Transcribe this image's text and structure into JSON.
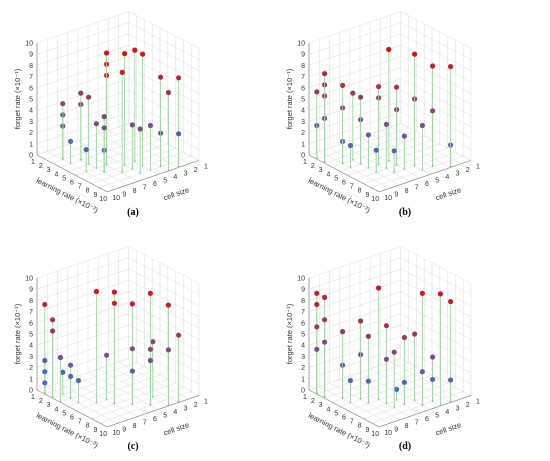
{
  "figure": {
    "panels": [
      {
        "caption": "(a)"
      },
      {
        "caption": "(b)"
      },
      {
        "caption": "(c)"
      },
      {
        "caption": "(d)"
      }
    ]
  },
  "colors": {
    "low": "#2f7ed8",
    "high": "#e01010",
    "stem": "#8fe08f",
    "grid": "#dddddd",
    "axis": "#888888"
  },
  "chart_data": [
    {
      "type": "scatter3d",
      "panel": "(a)",
      "xlabel": "learning rate (×10⁻³)",
      "ylabel": "cell size",
      "zlabel": "forget rate (×10⁻¹)",
      "xlim": [
        1,
        10
      ],
      "ylim": [
        1,
        10
      ],
      "zlim": [
        0,
        10
      ],
      "xticks": [
        "1",
        "2",
        "3",
        "4",
        "5",
        "6",
        "7",
        "8",
        "9",
        "10"
      ],
      "yticks": [
        "10",
        "9",
        "8",
        "7",
        "6",
        "5",
        "4",
        "3",
        "2",
        "1"
      ],
      "zticks": [
        "0",
        "1",
        "2",
        "3",
        "4",
        "5",
        "6",
        "7",
        "8",
        "9",
        "10"
      ],
      "points": [
        {
          "x": 3,
          "y": 9,
          "z": 3
        },
        {
          "x": 3,
          "y": 9,
          "z": 4
        },
        {
          "x": 3,
          "y": 9,
          "z": 5
        },
        {
          "x": 4,
          "y": 9,
          "z": 2
        },
        {
          "x": 4,
          "y": 8,
          "z": 5
        },
        {
          "x": 4,
          "y": 8,
          "z": 6
        },
        {
          "x": 5,
          "y": 8,
          "z": 6
        },
        {
          "x": 6,
          "y": 9,
          "z": 2
        },
        {
          "x": 6,
          "y": 8,
          "z": 4
        },
        {
          "x": 6,
          "y": 7,
          "z": 8
        },
        {
          "x": 6,
          "y": 7,
          "z": 9
        },
        {
          "x": 6,
          "y": 7,
          "z": 10
        },
        {
          "x": 7,
          "y": 8,
          "z": 2
        },
        {
          "x": 7,
          "y": 8,
          "z": 5
        },
        {
          "x": 7,
          "y": 8,
          "z": 4
        },
        {
          "x": 7,
          "y": 6,
          "z": 10
        },
        {
          "x": 7,
          "y": 5,
          "z": 10
        },
        {
          "x": 8,
          "y": 7,
          "z": 9
        },
        {
          "x": 8,
          "y": 6,
          "z": 4
        },
        {
          "x": 8,
          "y": 5,
          "z": 10
        },
        {
          "x": 9,
          "y": 6,
          "z": 4
        },
        {
          "x": 9,
          "y": 5,
          "z": 4
        },
        {
          "x": 9,
          "y": 4,
          "z": 3
        },
        {
          "x": 9,
          "y": 4,
          "z": 8
        },
        {
          "x": 10,
          "y": 4,
          "z": 7
        },
        {
          "x": 10,
          "y": 3,
          "z": 8
        },
        {
          "x": 10,
          "y": 3,
          "z": 3
        }
      ]
    },
    {
      "type": "scatter3d",
      "panel": "(b)",
      "xlabel": "learning rate (×10⁻³)",
      "ylabel": "cell size",
      "zlabel": "forget rate (×10⁻¹)",
      "xlim": [
        1,
        10
      ],
      "ylim": [
        1,
        10
      ],
      "zlim": [
        0,
        10
      ],
      "xticks": [
        "1",
        "2",
        "3",
        "4",
        "5",
        "6",
        "7",
        "8",
        "9",
        "10"
      ],
      "yticks": [
        "10",
        "9",
        "8",
        "7",
        "6",
        "5",
        "4",
        "3",
        "2",
        "1"
      ],
      "zticks": [
        "0",
        "1",
        "2",
        "3",
        "4",
        "5",
        "6",
        "7",
        "8",
        "9",
        "10"
      ],
      "points": [
        {
          "x": 2,
          "y": 10,
          "z": 3
        },
        {
          "x": 2,
          "y": 10,
          "z": 6
        },
        {
          "x": 3,
          "y": 10,
          "z": 4
        },
        {
          "x": 3,
          "y": 10,
          "z": 6
        },
        {
          "x": 3,
          "y": 10,
          "z": 7
        },
        {
          "x": 3,
          "y": 10,
          "z": 8
        },
        {
          "x": 4,
          "y": 9,
          "z": 2
        },
        {
          "x": 4,
          "y": 9,
          "z": 5
        },
        {
          "x": 4,
          "y": 8,
          "z": 6
        },
        {
          "x": 4,
          "y": 9,
          "z": 7
        },
        {
          "x": 5,
          "y": 9,
          "z": 2
        },
        {
          "x": 5,
          "y": 8,
          "z": 4
        },
        {
          "x": 5,
          "y": 8,
          "z": 6
        },
        {
          "x": 6,
          "y": 8,
          "z": 3
        },
        {
          "x": 6,
          "y": 7,
          "z": 6
        },
        {
          "x": 6,
          "y": 7,
          "z": 7
        },
        {
          "x": 6,
          "y": 6,
          "z": 10
        },
        {
          "x": 7,
          "y": 8,
          "z": 2
        },
        {
          "x": 7,
          "y": 7,
          "z": 4
        },
        {
          "x": 7,
          "y": 6,
          "z": 5
        },
        {
          "x": 7,
          "y": 6,
          "z": 7
        },
        {
          "x": 8,
          "y": 7,
          "z": 2
        },
        {
          "x": 8,
          "y": 6,
          "z": 3
        },
        {
          "x": 8,
          "y": 5,
          "z": 6
        },
        {
          "x": 8,
          "y": 5,
          "z": 10
        },
        {
          "x": 9,
          "y": 5,
          "z": 4
        },
        {
          "x": 9,
          "y": 4,
          "z": 9
        },
        {
          "x": 9,
          "y": 4,
          "z": 5
        },
        {
          "x": 10,
          "y": 3,
          "z": 2
        },
        {
          "x": 10,
          "y": 3,
          "z": 9
        }
      ]
    },
    {
      "type": "scatter3d",
      "panel": "(c)",
      "xlabel": "learning rate (×10⁻³)",
      "ylabel": "cell size",
      "zlabel": "forget rate (×10⁻¹)",
      "xlim": [
        1,
        10
      ],
      "ylim": [
        1,
        10
      ],
      "zlim": [
        0,
        10
      ],
      "xticks": [
        "1",
        "2",
        "3",
        "4",
        "5",
        "6",
        "7",
        "8",
        "9",
        "10"
      ],
      "yticks": [
        "10",
        "9",
        "8",
        "7",
        "6",
        "5",
        "4",
        "3",
        "2",
        "1"
      ],
      "zticks": [
        "0",
        "1",
        "2",
        "3",
        "4",
        "5",
        "6",
        "7",
        "8",
        "9",
        "10"
      ],
      "points": [
        {
          "x": 2,
          "y": 10,
          "z": 8
        },
        {
          "x": 2,
          "y": 10,
          "z": 3
        },
        {
          "x": 2,
          "y": 10,
          "z": 2
        },
        {
          "x": 2,
          "y": 10,
          "z": 1
        },
        {
          "x": 3,
          "y": 10,
          "z": 7
        },
        {
          "x": 3,
          "y": 10,
          "z": 6
        },
        {
          "x": 3,
          "y": 9,
          "z": 2
        },
        {
          "x": 4,
          "y": 10,
          "z": 4
        },
        {
          "x": 4,
          "y": 9,
          "z": 3
        },
        {
          "x": 4,
          "y": 9,
          "z": 2
        },
        {
          "x": 5,
          "y": 9,
          "z": 2
        },
        {
          "x": 6,
          "y": 7,
          "z": 4
        },
        {
          "x": 6,
          "y": 8,
          "z": 10
        },
        {
          "x": 7,
          "y": 7,
          "z": 10
        },
        {
          "x": 7,
          "y": 7,
          "z": 9
        },
        {
          "x": 8,
          "y": 6,
          "z": 9
        },
        {
          "x": 8,
          "y": 6,
          "z": 5
        },
        {
          "x": 8,
          "y": 6,
          "z": 3
        },
        {
          "x": 9,
          "y": 5,
          "z": 10
        },
        {
          "x": 9,
          "y": 5,
          "z": 5
        },
        {
          "x": 9,
          "y": 5,
          "z": 4
        },
        {
          "x": 10,
          "y": 4,
          "z": 9
        },
        {
          "x": 10,
          "y": 4,
          "z": 5
        },
        {
          "x": 10,
          "y": 3,
          "z": 6
        },
        {
          "x": 8,
          "y": 4,
          "z": 5
        }
      ]
    },
    {
      "type": "scatter3d",
      "panel": "(d)",
      "xlabel": "learning rate (×10⁻³)",
      "ylabel": "cell size",
      "zlabel": "forget rate (×10⁻¹)",
      "xlim": [
        1,
        10
      ],
      "ylim": [
        1,
        10
      ],
      "zlim": [
        0,
        10
      ],
      "xticks": [
        "1",
        "2",
        "3",
        "4",
        "5",
        "6",
        "7",
        "8",
        "9",
        "10"
      ],
      "yticks": [
        "10",
        "9",
        "8",
        "7",
        "6",
        "5",
        "4",
        "3",
        "2",
        "1"
      ],
      "zticks": [
        "0",
        "1",
        "2",
        "3",
        "4",
        "5",
        "6",
        "7",
        "8",
        "9",
        "10"
      ],
      "points": [
        {
          "x": 2,
          "y": 10,
          "z": 9
        },
        {
          "x": 2,
          "y": 10,
          "z": 8
        },
        {
          "x": 2,
          "y": 10,
          "z": 6
        },
        {
          "x": 2,
          "y": 10,
          "z": 4
        },
        {
          "x": 3,
          "y": 10,
          "z": 9
        },
        {
          "x": 3,
          "y": 10,
          "z": 7
        },
        {
          "x": 3,
          "y": 10,
          "z": 5
        },
        {
          "x": 4,
          "y": 9,
          "z": 3
        },
        {
          "x": 4,
          "y": 9,
          "z": 6
        },
        {
          "x": 5,
          "y": 9,
          "z": 2
        },
        {
          "x": 5,
          "y": 8,
          "z": 4
        },
        {
          "x": 5,
          "y": 8,
          "z": 7
        },
        {
          "x": 6,
          "y": 8,
          "z": 6
        },
        {
          "x": 6,
          "y": 8,
          "z": 2
        },
        {
          "x": 6,
          "y": 7,
          "z": 10
        },
        {
          "x": 7,
          "y": 7,
          "z": 7
        },
        {
          "x": 7,
          "y": 7,
          "z": 4
        },
        {
          "x": 7,
          "y": 6,
          "z": 1
        },
        {
          "x": 8,
          "y": 7,
          "z": 5
        },
        {
          "x": 8,
          "y": 6,
          "z": 6
        },
        {
          "x": 8,
          "y": 6,
          "z": 2
        },
        {
          "x": 9,
          "y": 5,
          "z": 10
        },
        {
          "x": 9,
          "y": 5,
          "z": 3
        },
        {
          "x": 9,
          "y": 4,
          "z": 4
        },
        {
          "x": 10,
          "y": 4,
          "z": 10
        },
        {
          "x": 10,
          "y": 3,
          "z": 9
        },
        {
          "x": 10,
          "y": 3,
          "z": 2
        },
        {
          "x": 9,
          "y": 4,
          "z": 2
        },
        {
          "x": 8,
          "y": 5,
          "z": 6
        }
      ]
    }
  ]
}
